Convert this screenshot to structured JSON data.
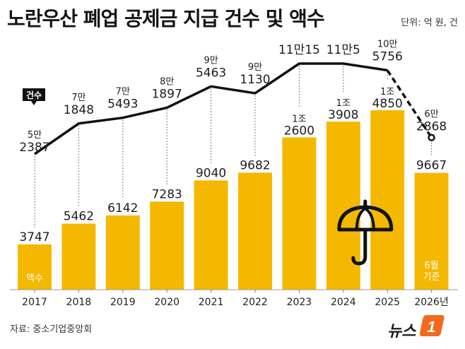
{
  "title": "노란우산 폐업 공제금 지급 건수 및 액수",
  "unit": "단위: 억 원, 건",
  "source": "자료: 중소기업중앙회",
  "logo": "뉴스1",
  "series_labels": {
    "amount": "액수",
    "count": "건수"
  },
  "note_2026": [
    "6월",
    "기준"
  ],
  "colors": {
    "bar": "#F5B800",
    "line": "#111111",
    "callout": "#111111"
  },
  "icon": "umbrella-icon",
  "chart_data": {
    "type": "bar",
    "categories": [
      "2017",
      "2018",
      "2019",
      "2020",
      "2021",
      "2022",
      "2023",
      "2024",
      "2025",
      "2026년"
    ],
    "series": [
      {
        "name": "액수",
        "type": "bar",
        "values": [
          3747,
          5462,
          6142,
          7283,
          9040,
          9682,
          12600,
          13908,
          14850,
          9667
        ],
        "labels": [
          [
            "3747"
          ],
          [
            "5462"
          ],
          [
            "6142"
          ],
          [
            "7283"
          ],
          [
            "9040"
          ],
          [
            "9682"
          ],
          [
            "1조",
            "2600"
          ],
          [
            "1조",
            "3908"
          ],
          [
            "1조",
            "4850"
          ],
          [
            "9667"
          ]
        ]
      },
      {
        "name": "건수",
        "type": "line",
        "values": [
          52387,
          71848,
          75493,
          81897,
          95463,
          91130,
          110015,
          110005,
          105756,
          62868
        ],
        "labels": [
          [
            "5만",
            "2387"
          ],
          [
            "7만",
            "1848"
          ],
          [
            "7만",
            "5493"
          ],
          [
            "8만",
            "1897"
          ],
          [
            "9만",
            "5463"
          ],
          [
            "9만",
            "1130"
          ],
          [
            "11만15"
          ],
          [
            "11만5"
          ],
          [
            "10만",
            "5756"
          ],
          [
            "6만",
            "2868"
          ]
        ]
      }
    ]
  }
}
